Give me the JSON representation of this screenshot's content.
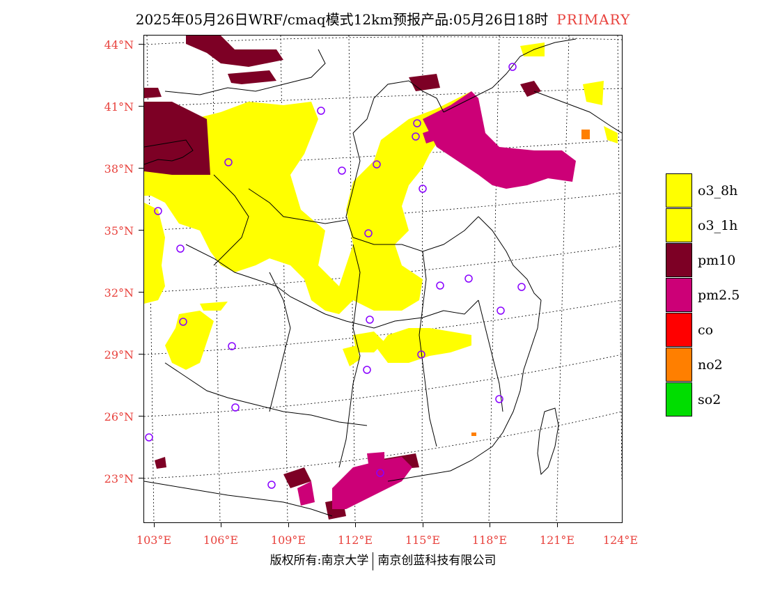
{
  "title": {
    "main": "2025年05月26日WRF/cmaq模式12km预报产品:05月26日18时",
    "tag": "PRIMARY"
  },
  "axes": {
    "lat_labels": [
      "44°N",
      "41°N",
      "38°N",
      "35°N",
      "32°N",
      "29°N",
      "26°N",
      "23°N"
    ],
    "lon_labels": [
      "103°E",
      "106°E",
      "109°E",
      "112°E",
      "115°E",
      "118°E",
      "121°E",
      "124°E"
    ]
  },
  "legend": [
    {
      "label": "o3_8h",
      "color": "#ffff00"
    },
    {
      "label": "o3_1h",
      "color": "#ffff00"
    },
    {
      "label": "pm10",
      "color": "#7d0025"
    },
    {
      "label": "pm2.5",
      "color": "#cc0077"
    },
    {
      "label": "co",
      "color": "#ff0000"
    },
    {
      "label": "no2",
      "color": "#ff7f00"
    },
    {
      "label": "so2",
      "color": "#00dd00"
    }
  ],
  "footer": {
    "left": "版权所有:南京大学",
    "right": "南京创蓝科技有限公司"
  }
}
